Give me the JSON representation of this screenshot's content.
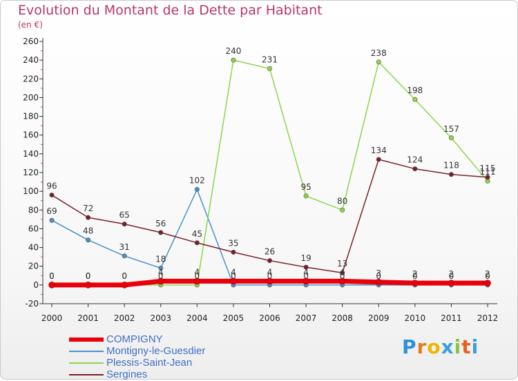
{
  "header": {
    "title": "Evolution du Montant de la Dette par Habitant",
    "subtitle": "(en €)"
  },
  "brand": {
    "text": "Proxiti"
  },
  "chart_data": {
    "type": "line",
    "x": [
      "2000",
      "2001",
      "2002",
      "2003",
      "2004",
      "2005",
      "2006",
      "2007",
      "2008",
      "2009",
      "2010",
      "2011",
      "2012"
    ],
    "ylim": [
      -20,
      260
    ],
    "yticks": [
      -20,
      0,
      20,
      40,
      60,
      80,
      100,
      120,
      140,
      160,
      180,
      200,
      220,
      240,
      260
    ],
    "grid": false,
    "legend_position": "bottom-left",
    "series": [
      {
        "name": "COMPIGNY",
        "color": "#e8000b",
        "values": [
          0,
          0,
          0,
          4,
          4,
          4,
          4,
          4,
          4,
          3,
          2,
          2,
          2
        ],
        "labels": [
          "0",
          "0",
          "0",
          "4",
          "4",
          "4",
          "4",
          "4",
          "4",
          "3",
          "2",
          "2",
          "2"
        ]
      },
      {
        "name": "Montigny-le-Guesdier",
        "color": "#4a90c8",
        "values": [
          69,
          48,
          31,
          18,
          102,
          0,
          0,
          0,
          0,
          0,
          0,
          0,
          0
        ],
        "labels": [
          "69",
          "48",
          "31",
          "18",
          "102",
          "0",
          "0",
          "0",
          "0",
          "0",
          "0",
          "0",
          "0"
        ]
      },
      {
        "name": "Plessis-Saint-Jean",
        "color": "#8ed44a",
        "values": [
          0,
          0,
          0,
          0,
          0,
          240,
          231,
          95,
          80,
          238,
          198,
          157,
          111
        ],
        "labels": [
          "0",
          "0",
          "0",
          "0",
          "0",
          "240",
          "231",
          "95",
          "80",
          "238",
          "198",
          "157",
          "111"
        ]
      },
      {
        "name": "Sergines",
        "color": "#7a1f28",
        "values": [
          96,
          72,
          65,
          56,
          45,
          35,
          26,
          19,
          13,
          134,
          124,
          118,
          115
        ],
        "labels": [
          "96",
          "72",
          "65",
          "56",
          "45",
          "35",
          "26",
          "19",
          "13",
          "134",
          "124",
          "118",
          "115"
        ]
      }
    ]
  }
}
